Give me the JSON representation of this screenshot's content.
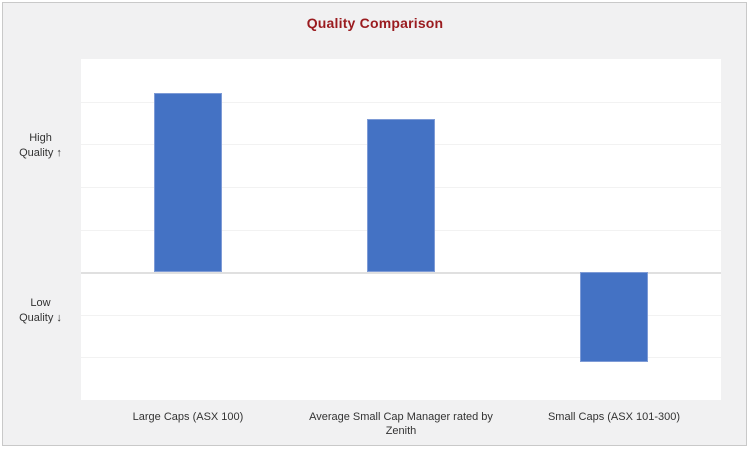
{
  "chart": {
    "title": "Quality Comparison",
    "title_color": "#9a1b1f",
    "background_color": "#f1f1f2",
    "plot_background_color": "#ffffff",
    "frame_border_color": "#c9c9c9",
    "bar_color": "#4472c4",
    "bar_border_color": "#7e9bd6",
    "gridline_color": "#f2f2f2",
    "zero_line_color": "#e0e0e0",
    "y_axis": {
      "high_label_line1": "High",
      "high_label_line2": "Quality ↑",
      "low_label_line1": "Low",
      "low_label_line2": "Quality ↓"
    }
  },
  "chart_data": {
    "type": "bar",
    "title": "Quality Comparison",
    "categories": [
      "Large Caps (ASX 100)",
      "Average Small Cap Manager rated by Zenith",
      "Small Caps (ASX 101-300)"
    ],
    "values": [
      4.2,
      3.6,
      -2.1
    ],
    "xlabel": "",
    "ylabel": "",
    "ylim": [
      -3,
      5
    ],
    "gridline_interval": 1,
    "y_tick_labels_visible": false,
    "grid": true,
    "zero_line": true,
    "legend_position": "none",
    "y_axis_annotations": [
      "High Quality ↑",
      "Low Quality ↓"
    ],
    "bar_color": "#4472c4"
  }
}
